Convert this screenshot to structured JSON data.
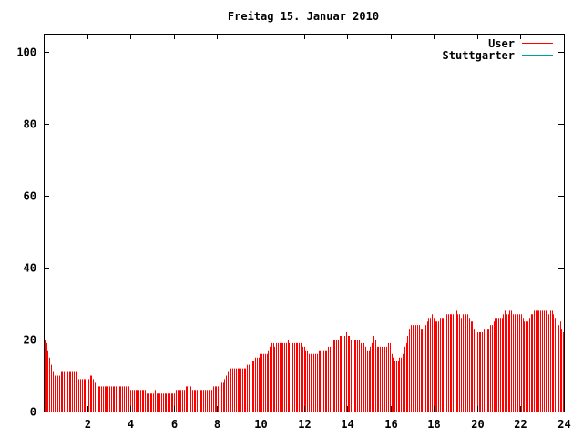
{
  "chart_data": {
    "type": "bar",
    "title": "Freitag 15. Januar 2010",
    "xlabel": "",
    "ylabel": "",
    "xlim": [
      0,
      24
    ],
    "ylim": [
      0,
      105
    ],
    "x_ticks": [
      "2",
      "4",
      "6",
      "8",
      "10",
      "12",
      "14",
      "16",
      "18",
      "20",
      "22",
      "24"
    ],
    "y_ticks": [
      "0",
      "20",
      "40",
      "60",
      "80",
      "100"
    ],
    "grid": false,
    "legend_position": "top-right",
    "series": [
      {
        "name": "User",
        "color": "#ff0000",
        "values": [
          20,
          19,
          17,
          15,
          13,
          11,
          10,
          10,
          10,
          10,
          11,
          11,
          11,
          11,
          11,
          11,
          11,
          11,
          11,
          11,
          10,
          9,
          9,
          9,
          9,
          9,
          9,
          9,
          10,
          10,
          9,
          8,
          8,
          7,
          7,
          7,
          7,
          7,
          7,
          7,
          7,
          7,
          7,
          7,
          7,
          7,
          7,
          7,
          7,
          7,
          7,
          7,
          7,
          6,
          6,
          6,
          6,
          6,
          6,
          6,
          6,
          6,
          6,
          5,
          5,
          5,
          5,
          5,
          6,
          5,
          5,
          5,
          5,
          5,
          5,
          5,
          5,
          5,
          5,
          5,
          5,
          6,
          6,
          6,
          6,
          6,
          6,
          7,
          7,
          7,
          7,
          6,
          6,
          6,
          6,
          6,
          6,
          6,
          6,
          6,
          6,
          6,
          6,
          6,
          7,
          7,
          7,
          7,
          7,
          8,
          8,
          9,
          10,
          11,
          12,
          12,
          12,
          12,
          12,
          12,
          12,
          12,
          12,
          12,
          12,
          13,
          13,
          13,
          14,
          14,
          15,
          15,
          15,
          16,
          16,
          16,
          16,
          16,
          17,
          18,
          19,
          19,
          18,
          19,
          19,
          19,
          19,
          19,
          19,
          19,
          20,
          19,
          19,
          19,
          19,
          19,
          19,
          19,
          19,
          18,
          18,
          17,
          17,
          16,
          16,
          16,
          16,
          16,
          16,
          17,
          17,
          16,
          17,
          17,
          17,
          18,
          18,
          19,
          20,
          20,
          20,
          20,
          21,
          21,
          21,
          21,
          22,
          21,
          21,
          20,
          20,
          20,
          20,
          20,
          20,
          19,
          19,
          19,
          18,
          17,
          17,
          18,
          19,
          21,
          20,
          18,
          18,
          18,
          18,
          18,
          18,
          18,
          19,
          19,
          16,
          15,
          14,
          14,
          14,
          15,
          15,
          16,
          18,
          19,
          21,
          23,
          24,
          24,
          24,
          24,
          24,
          24,
          23,
          23,
          23,
          24,
          25,
          26,
          26,
          27,
          26,
          25,
          25,
          25,
          26,
          26,
          26,
          27,
          27,
          27,
          27,
          27,
          27,
          27,
          28,
          27,
          27,
          26,
          27,
          27,
          27,
          27,
          26,
          25,
          25,
          23,
          22,
          22,
          22,
          22,
          22,
          23,
          22,
          23,
          23,
          24,
          24,
          25,
          26,
          26,
          26,
          26,
          26,
          27,
          28,
          27,
          27,
          28,
          28,
          27,
          27,
          26,
          27,
          27,
          27,
          26,
          25,
          25,
          25,
          26,
          27,
          27,
          28,
          28,
          28,
          28,
          28,
          28,
          28,
          28,
          27,
          27,
          28,
          28,
          27,
          26,
          25,
          24,
          25,
          23,
          22
        ]
      },
      {
        "name": "Stuttgarter",
        "color": "#00a0a0",
        "values": []
      }
    ]
  }
}
